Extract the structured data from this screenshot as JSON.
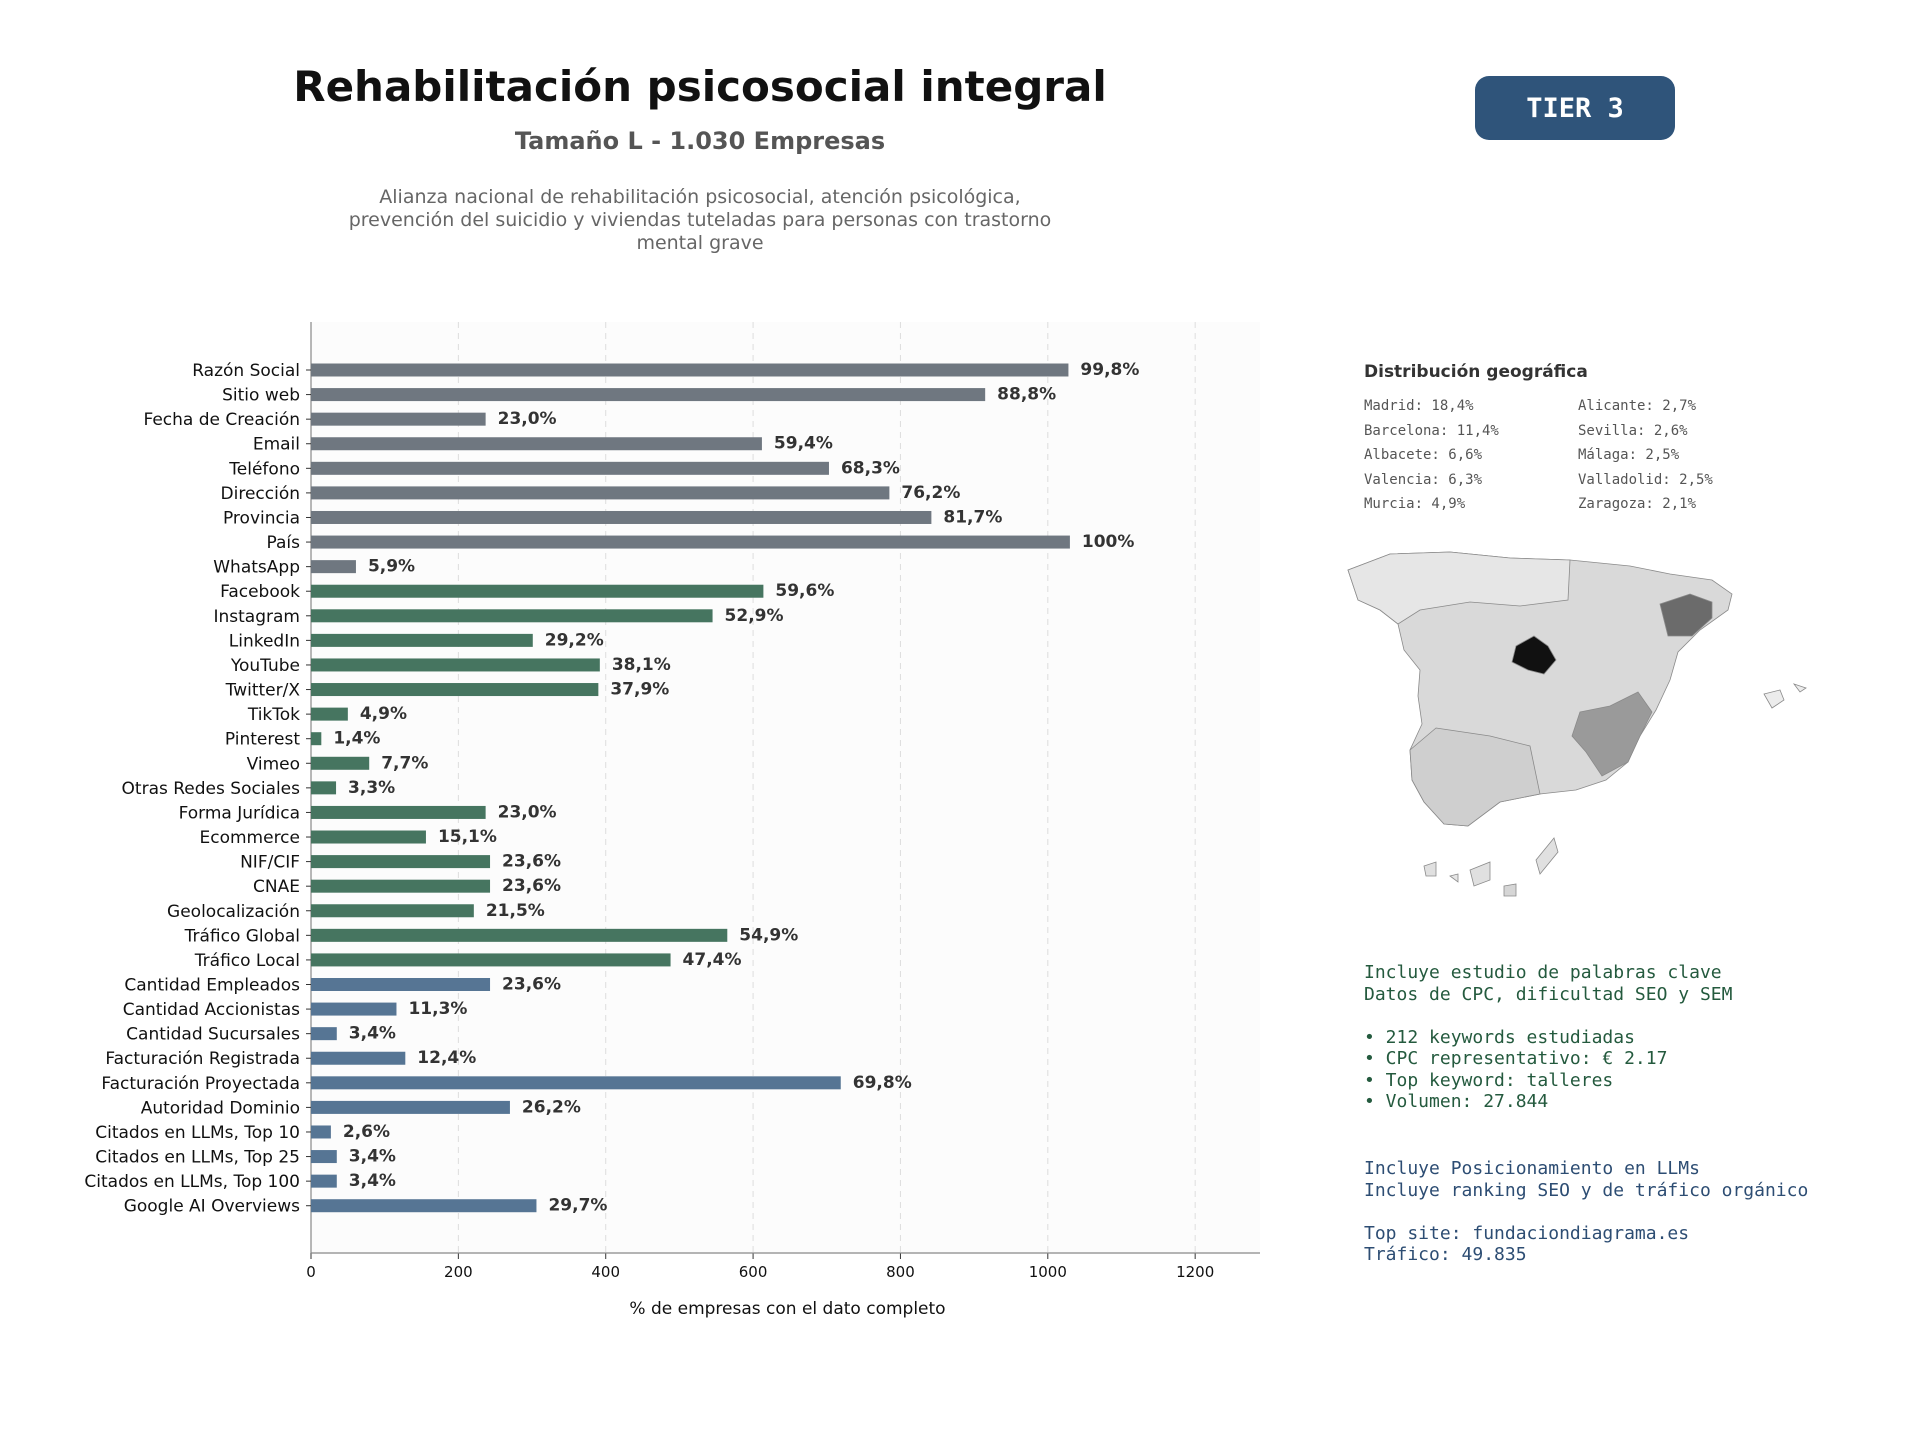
{
  "header": {
    "title": "Rehabilitación psicosocial integral",
    "subtitle": "Tamaño L - 1.030 Empresas",
    "description": "Alianza nacional de rehabilitación psicosocial, atención psicológica, prevención del suicidio y viviendas tuteladas para personas con trastorno mental grave",
    "tier_badge": "TIER 3"
  },
  "colors": {
    "group_basic": "#6f7780",
    "group_social": "#467560",
    "group_business": "#567594",
    "tier_badge": "#2f547a"
  },
  "chart_data": {
    "type": "bar",
    "orientation": "horizontal",
    "xlabel": "% de empresas con el dato completo",
    "xlim": [
      0,
      1288
    ],
    "xticks": [
      0,
      200,
      400,
      600,
      800,
      1000,
      1200
    ],
    "grid": "vertical dashed",
    "categories": [
      "Razón Social",
      "Sitio web",
      "Fecha de Creación",
      "Email",
      "Teléfono",
      "Dirección",
      "Provincia",
      "País",
      "WhatsApp",
      "Facebook",
      "Instagram",
      "LinkedIn",
      "YouTube",
      "Twitter/X",
      "TikTok",
      "Pinterest",
      "Vimeo",
      "Otras Redes Sociales",
      "Forma Jurídica",
      "Ecommerce",
      "NIF/CIF",
      "CNAE",
      "Geolocalización",
      "Tráfico Global",
      "Tráfico Local",
      "Cantidad Empleados",
      "Cantidad Accionistas",
      "Cantidad Sucursales",
      "Facturación Registrada",
      "Facturación Proyectada",
      "Autoridad Dominio",
      "Citados en LLMs, Top 10",
      "Citados en LLMs, Top 25",
      "Citados en LLMs, Top 100",
      "Google AI Overviews"
    ],
    "values": [
      1028,
      915,
      237,
      612,
      703,
      785,
      842,
      1030,
      61,
      614,
      545,
      301,
      392,
      390,
      50,
      14,
      79,
      34,
      237,
      156,
      243,
      243,
      221,
      565,
      488,
      243,
      116,
      35,
      128,
      719,
      270,
      27,
      35,
      35,
      306
    ],
    "labels": [
      "99,8%",
      "88,8%",
      "23,0%",
      "59,4%",
      "68,3%",
      "76,2%",
      "81,7%",
      "100%",
      "5,9%",
      "59,6%",
      "52,9%",
      "29,2%",
      "38,1%",
      "37,9%",
      "4,9%",
      "1,4%",
      "7,7%",
      "3,3%",
      "23,0%",
      "15,1%",
      "23,6%",
      "23,6%",
      "21,5%",
      "54,9%",
      "47,4%",
      "23,6%",
      "11,3%",
      "3,4%",
      "12,4%",
      "69,8%",
      "26,2%",
      "2,6%",
      "3,4%",
      "3,4%",
      "29,7%"
    ],
    "groups": [
      "basic",
      "basic",
      "basic",
      "basic",
      "basic",
      "basic",
      "basic",
      "basic",
      "basic",
      "social",
      "social",
      "social",
      "social",
      "social",
      "social",
      "social",
      "social",
      "social",
      "social",
      "social",
      "social",
      "social",
      "social",
      "social",
      "social",
      "business",
      "business",
      "business",
      "business",
      "business",
      "business",
      "business",
      "business",
      "business",
      "business"
    ]
  },
  "geo": {
    "title": "Distribución geográfica",
    "items": [
      "Madrid: 18,4%",
      "Alicante: 2,7%",
      "Barcelona: 11,4%",
      "Sevilla: 2,6%",
      "Albacete: 6,6%",
      "Málaga: 2,5%",
      "Valencia: 6,3%",
      "Valladolid: 2,5%",
      "Murcia: 4,9%",
      "Zaragoza: 2,1%"
    ]
  },
  "seo": {
    "line1": "Incluye estudio de palabras clave",
    "line2": "Datos de CPC, dificultad SEO y SEM",
    "bullet1": "• 212 keywords estudiadas",
    "bullet2": "• CPC representativo: € 2.17",
    "bullet3": "• Top keyword: talleres",
    "bullet4": "• Volumen: 27.844"
  },
  "llm": {
    "line1": "Incluye Posicionamiento en LLMs",
    "line2": "Incluye ranking SEO y de tráfico orgánico",
    "top_site": "Top site: fundaciondiagrama.es",
    "traffic": "Tráfico: 49.835"
  }
}
